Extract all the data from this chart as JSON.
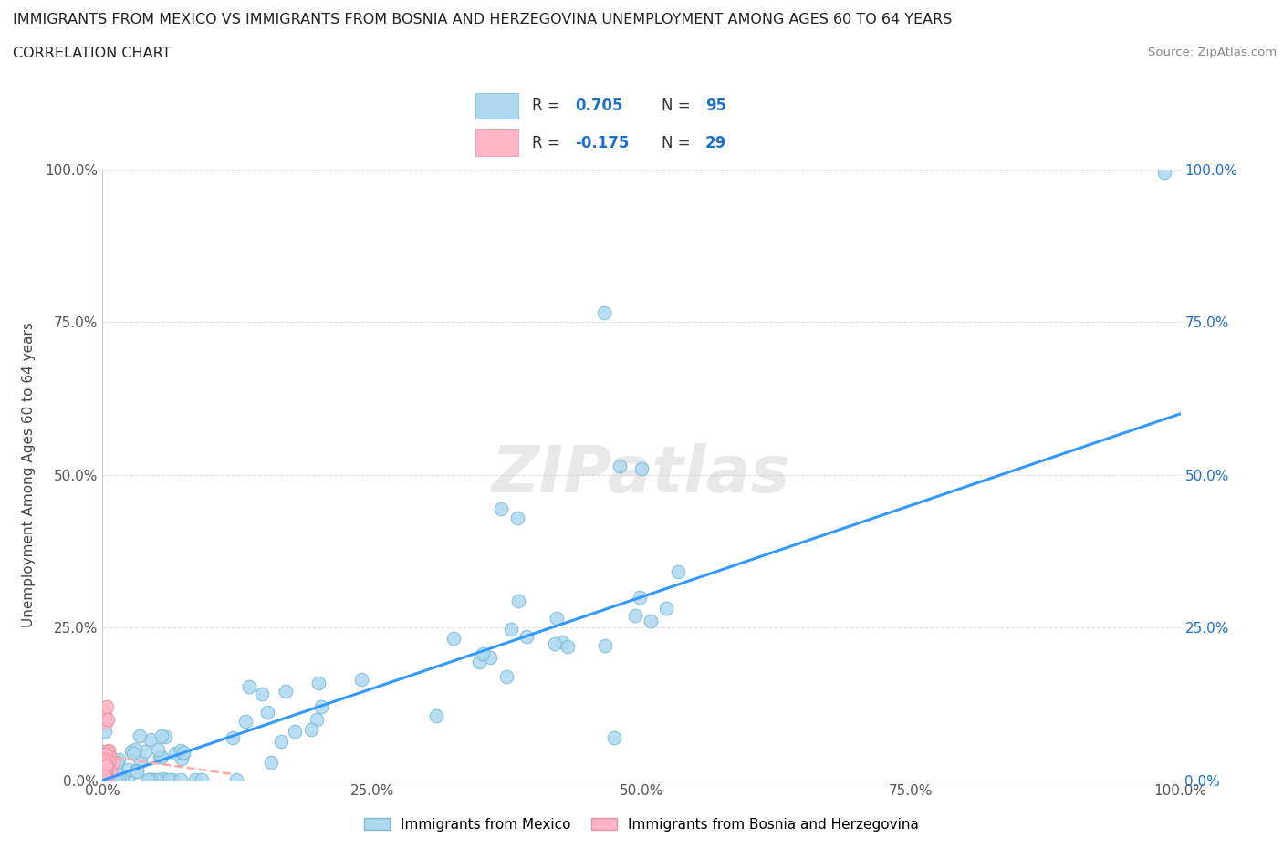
{
  "title_line1": "IMMIGRANTS FROM MEXICO VS IMMIGRANTS FROM BOSNIA AND HERZEGOVINA UNEMPLOYMENT AMONG AGES 60 TO 64 YEARS",
  "title_line2": "CORRELATION CHART",
  "source": "Source: ZipAtlas.com",
  "ylabel": "Unemployment Among Ages 60 to 64 years",
  "xlim": [
    0.0,
    1.0
  ],
  "ylim": [
    0.0,
    1.0
  ],
  "xticks": [
    0.0,
    0.25,
    0.5,
    0.75,
    1.0
  ],
  "xtick_labels": [
    "0.0%",
    "25.0%",
    "50.0%",
    "75.0%",
    "100.0%"
  ],
  "yticks": [
    0.0,
    0.25,
    0.5,
    0.75,
    1.0
  ],
  "ytick_labels": [
    "0.0%",
    "25.0%",
    "50.0%",
    "75.0%",
    "100.0%"
  ],
  "right_ytick_labels": [
    "0.0%",
    "25.0%",
    "50.0%",
    "75.0%",
    "100.0%"
  ],
  "mexico_color": "#ADD8F0",
  "mexico_edge_color": "#7BBAD4",
  "bosnia_color": "#FFB6C8",
  "bosnia_edge_color": "#E88FA0",
  "mexico_R": 0.705,
  "mexico_N": 95,
  "bosnia_R": -0.175,
  "bosnia_N": 29,
  "legend_R_color": "#1E6FCC",
  "trend_mexico_color": "#3399FF",
  "trend_bosnia_color": "#FFAAAA",
  "watermark": "ZIPatlas",
  "background_color": "#FFFFFF",
  "grid_color": "#E0E0E0",
  "mexico_trend_x0": 0.0,
  "mexico_trend_y0": 0.0,
  "mexico_trend_x1": 1.0,
  "mexico_trend_y1": 0.6,
  "bosnia_trend_x0": 0.0,
  "bosnia_trend_y0": 0.04,
  "bosnia_trend_x1": 0.12,
  "bosnia_trend_y1": 0.01
}
